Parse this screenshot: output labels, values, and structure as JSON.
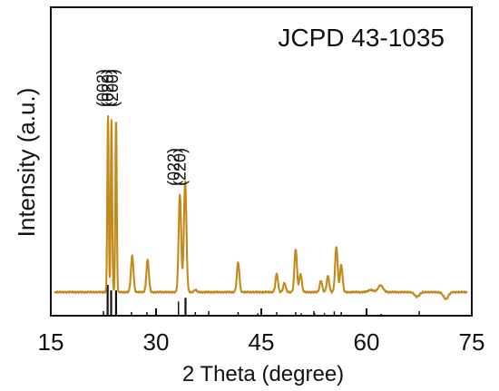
{
  "chart_data": {
    "type": "line",
    "title": "JCPD 43-1035",
    "xlabel": "2 Theta (degree)",
    "ylabel": "Intensity (a.u.)",
    "xlim": [
      15,
      75
    ],
    "xticks": [
      15,
      30,
      45,
      60,
      75
    ],
    "grid": false,
    "colors": {
      "pattern": "#c28a1a",
      "reference": "#111111",
      "axes": "#111111"
    },
    "peak_labels": [
      {
        "text": "(002)",
        "x": 23.2
      },
      {
        "text": "(020)",
        "x": 23.9
      },
      {
        "text": "(200)",
        "x": 24.6
      },
      {
        "text": "(022)",
        "x": 33.3
      },
      {
        "text": "(220)",
        "x": 34.2
      }
    ],
    "pattern": {
      "baseline": 0.06,
      "noise": 0.004,
      "peaks": [
        {
          "x": 23.15,
          "y": 0.84
        },
        {
          "x": 23.65,
          "y": 0.82
        },
        {
          "x": 24.3,
          "y": 0.82
        },
        {
          "x": 26.6,
          "y": 0.22
        },
        {
          "x": 28.8,
          "y": 0.2
        },
        {
          "x": 33.4,
          "y": 0.49
        },
        {
          "x": 34.15,
          "y": 0.55
        },
        {
          "x": 35.6,
          "y": 0.07
        },
        {
          "x": 41.7,
          "y": 0.19
        },
        {
          "x": 44.8,
          "y": 0.06
        },
        {
          "x": 47.2,
          "y": 0.14
        },
        {
          "x": 48.3,
          "y": 0.1
        },
        {
          "x": 49.9,
          "y": 0.25
        },
        {
          "x": 50.6,
          "y": 0.14
        },
        {
          "x": 53.5,
          "y": 0.11
        },
        {
          "x": 54.5,
          "y": 0.13
        },
        {
          "x": 55.7,
          "y": 0.26
        },
        {
          "x": 56.4,
          "y": 0.18
        },
        {
          "x": 59.9,
          "y": 0.06
        },
        {
          "x": 60.6,
          "y": 0.07
        },
        {
          "x": 62.0,
          "y": 0.09
        },
        {
          "x": 67.2,
          "y": 0.04
        },
        {
          "x": 71.3,
          "y": 0.03
        }
      ]
    },
    "reference_lines": [
      {
        "x": 23.1,
        "h": 1.0
      },
      {
        "x": 23.6,
        "h": 0.82
      },
      {
        "x": 24.3,
        "h": 0.82
      },
      {
        "x": 26.5,
        "h": 0.12
      },
      {
        "x": 28.7,
        "h": 0.12
      },
      {
        "x": 33.2,
        "h": 0.46
      },
      {
        "x": 34.2,
        "h": 0.58
      },
      {
        "x": 35.6,
        "h": 0.12
      },
      {
        "x": 41.7,
        "h": 0.12
      },
      {
        "x": 44.5,
        "h": 0.08
      },
      {
        "x": 47.2,
        "h": 0.12
      },
      {
        "x": 49.9,
        "h": 0.12
      },
      {
        "x": 50.7,
        "h": 0.08
      },
      {
        "x": 52.6,
        "h": 0.08
      },
      {
        "x": 54.0,
        "h": 0.08
      },
      {
        "x": 55.4,
        "h": 0.14
      },
      {
        "x": 56.4,
        "h": 0.12
      },
      {
        "x": 60.0,
        "h": 0.06
      },
      {
        "x": 62.1,
        "h": 0.06
      }
    ]
  }
}
